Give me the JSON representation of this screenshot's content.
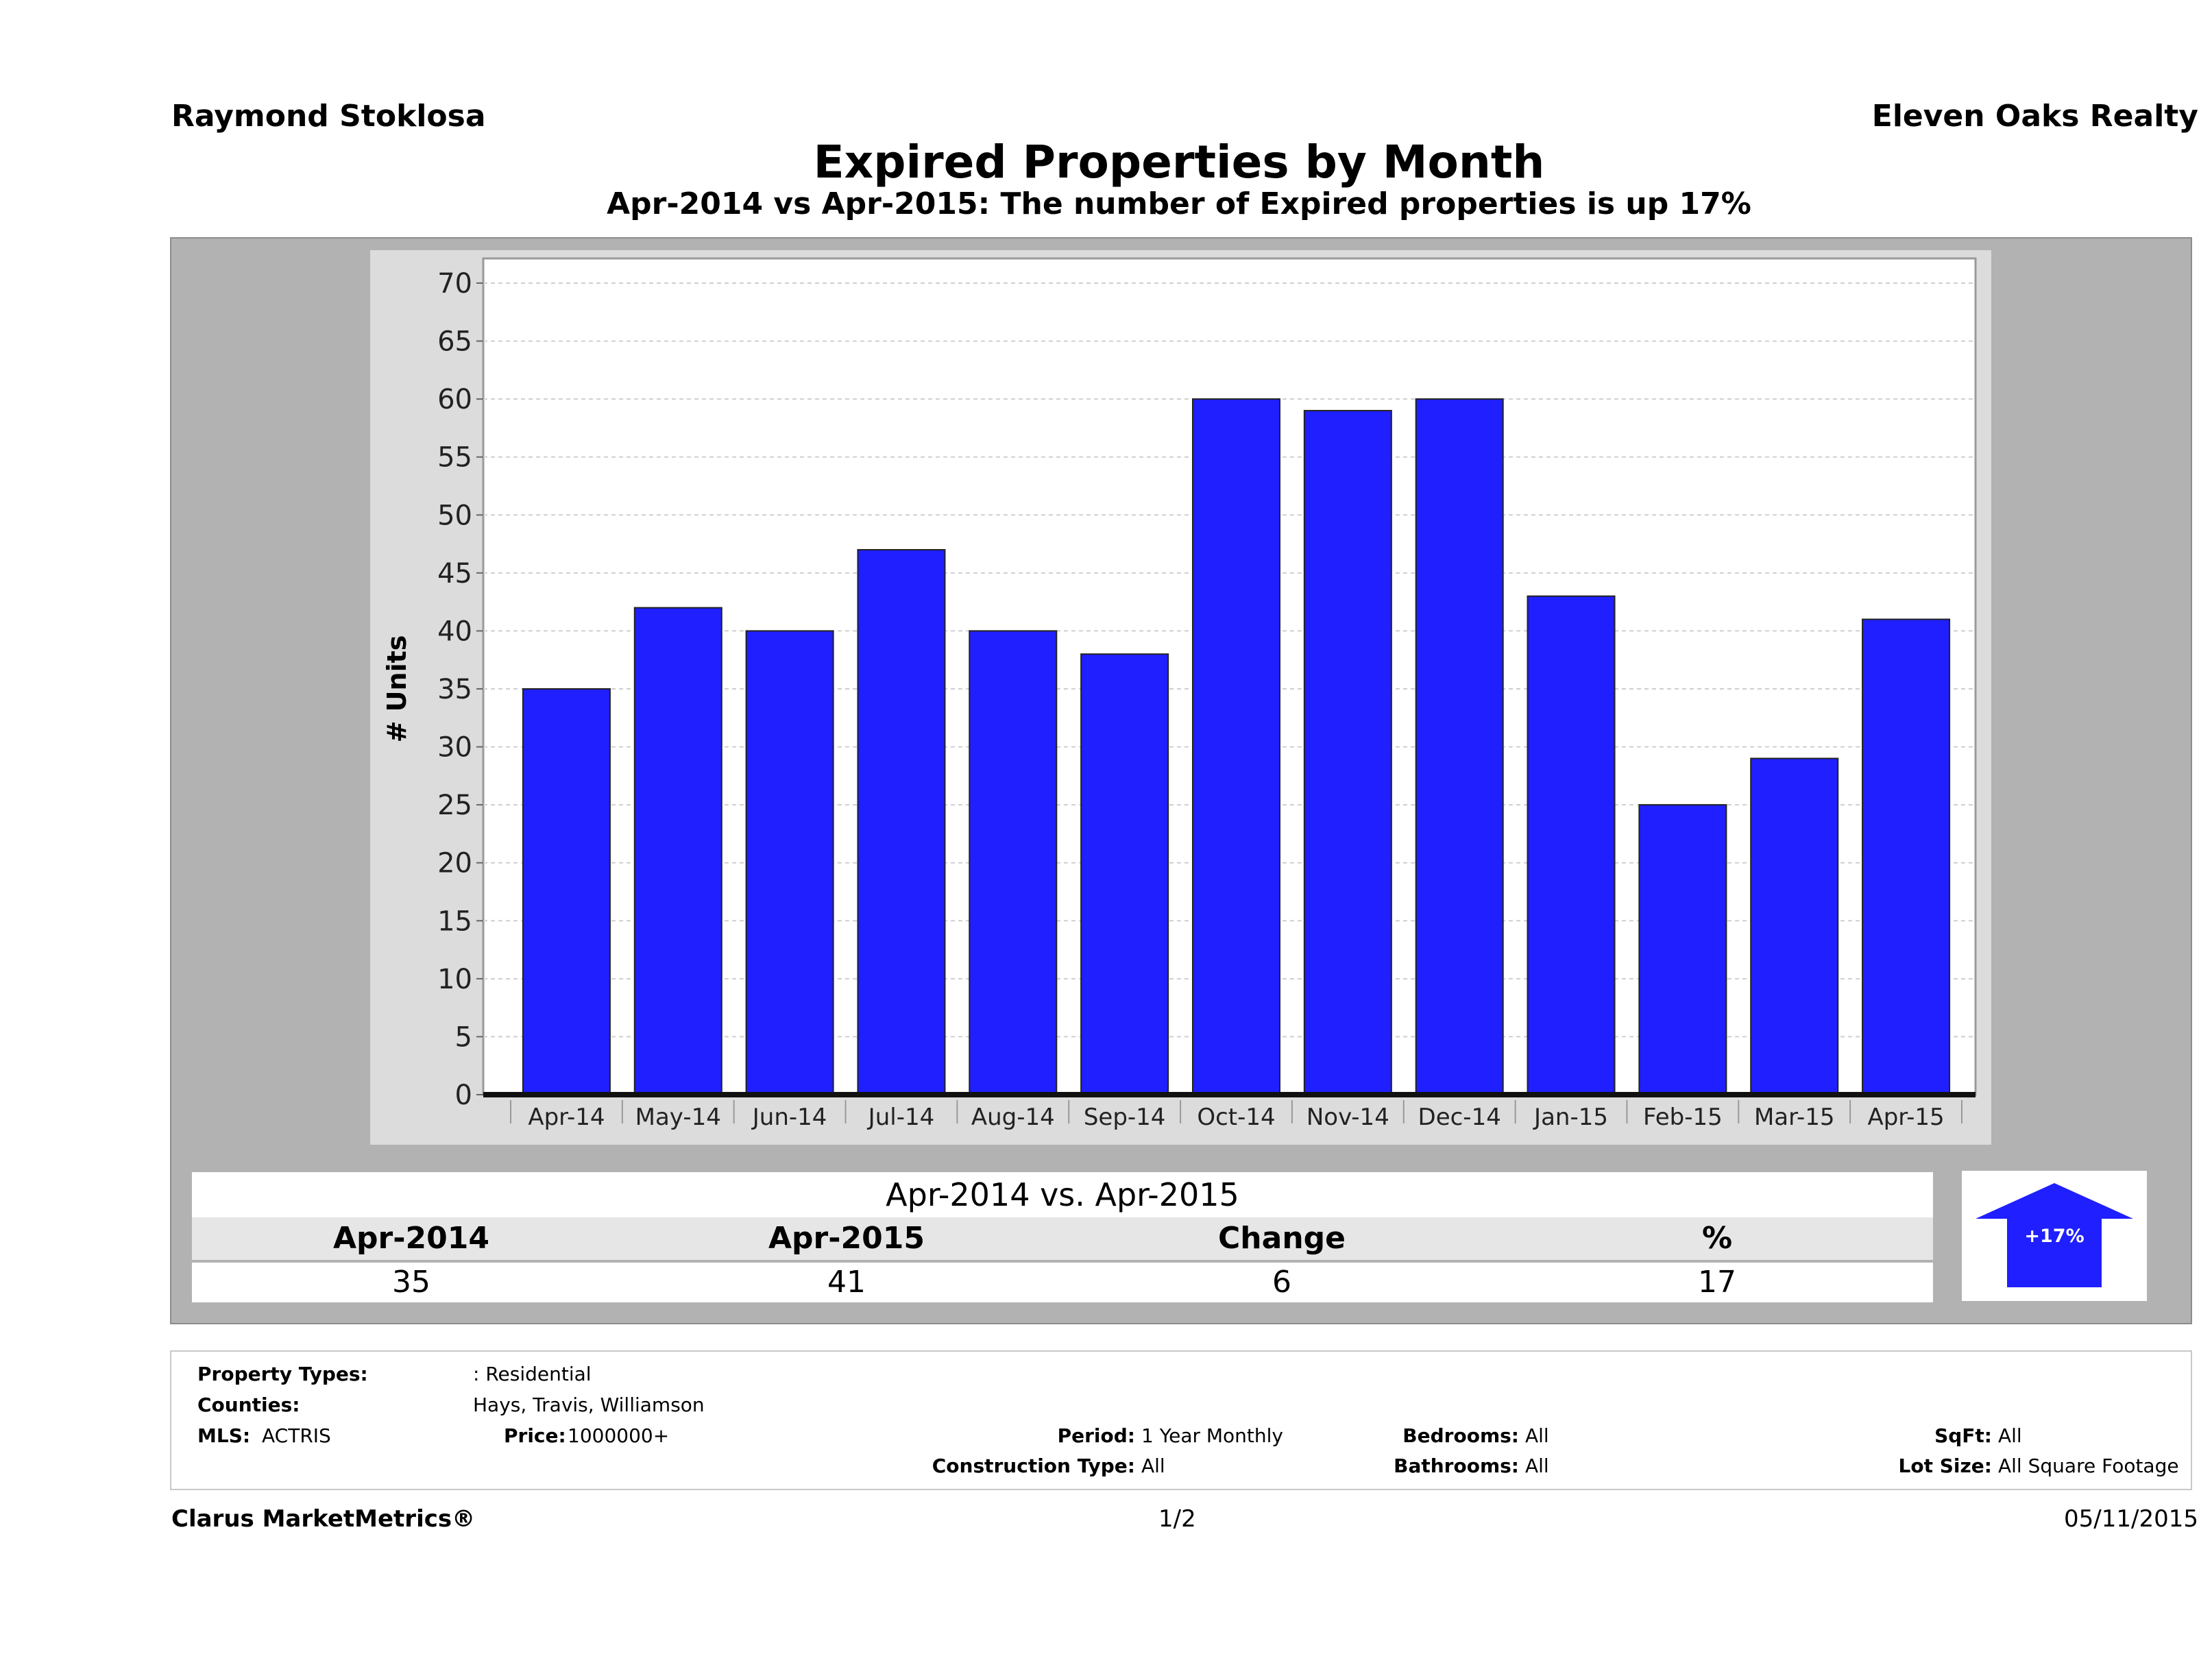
{
  "header": {
    "agent": "Raymond Stoklosa",
    "broker": "Eleven Oaks Realty",
    "title": "Expired Properties by Month",
    "subtitle": "Apr-2014 vs Apr-2015: The number of Expired  properties is up 17%"
  },
  "chart_data": {
    "type": "bar",
    "ylabel": "# Units",
    "ylim": [
      0,
      70
    ],
    "yticks": [
      0,
      5,
      10,
      15,
      20,
      25,
      30,
      35,
      40,
      45,
      50,
      55,
      60,
      65,
      70
    ],
    "grid": true,
    "categories": [
      "Apr-14",
      "May-14",
      "Jun-14",
      "Jul-14",
      "Aug-14",
      "Sep-14",
      "Oct-14",
      "Nov-14",
      "Dec-14",
      "Jan-15",
      "Feb-15",
      "Mar-15",
      "Apr-15"
    ],
    "values": [
      35,
      42,
      40,
      47,
      40,
      38,
      60,
      59,
      60,
      43,
      25,
      29,
      41
    ],
    "bar_color": "#1f1fff"
  },
  "comparison": {
    "title": "Apr-2014 vs. Apr-2015",
    "headers": [
      "Apr-2014",
      "Apr-2015",
      "Change",
      "%"
    ],
    "values": [
      "35",
      "41",
      "6",
      "17"
    ],
    "badge": "+17%",
    "badge_icon": "up-arrow-icon"
  },
  "criteria": {
    "property_types_label": "Property Types:",
    "property_types_value": ": Residential",
    "counties_label": "Counties:",
    "counties_value": "Hays, Travis, Williamson",
    "mls_label": "MLS:",
    "mls_value": "ACTRIS",
    "price_label": "Price:",
    "price_value": "1000000+",
    "period_label": "Period:",
    "period_value": "1 Year Monthly",
    "construction_label": "Construction Type:",
    "construction_value": "All",
    "bedrooms_label": "Bedrooms:",
    "bedrooms_value": "All",
    "bathrooms_label": "Bathrooms:",
    "bathrooms_value": "All",
    "sqft_label": "SqFt:",
    "sqft_value": "All",
    "lot_label": "Lot Size:",
    "lot_value": "All Square Footage"
  },
  "footer": {
    "brand": "Clarus MarketMetrics®",
    "page": "1/2",
    "date": "05/11/2015"
  }
}
